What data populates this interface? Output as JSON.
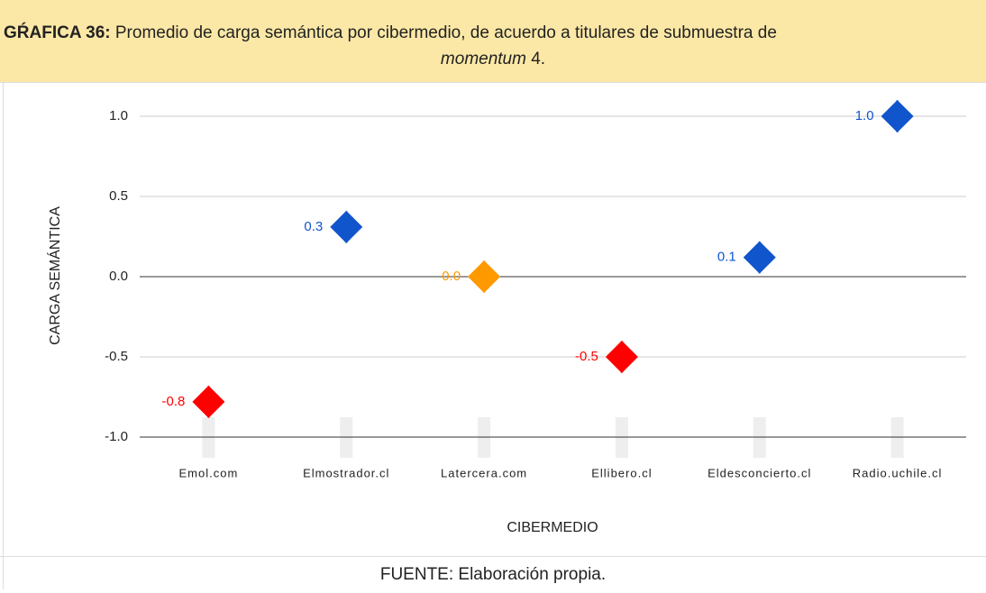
{
  "header": {
    "label": "GŔAFICA 36:",
    "text": "Promedio de carga semántica por cibermedio, de acuerdo a titulares de submuestra de",
    "italic": "momentum",
    "suffix": " 4."
  },
  "chart_data": {
    "type": "scatter",
    "categories": [
      "Emol.com",
      "Elmostrador.cl",
      "Latercera.com",
      "Ellibero.cl",
      "Eldesconcierto.cl",
      "Radio.uchile.cl"
    ],
    "values": [
      -0.78,
      0.31,
      0.0,
      -0.5,
      0.12,
      1.0
    ],
    "value_labels": [
      "-0.8",
      "0.3",
      "0.0",
      "-0.5",
      "0.1",
      "1.0"
    ],
    "colors": [
      "#ff0000",
      "#1155cc",
      "#ff9900",
      "#ff0000",
      "#1155cc",
      "#1155cc"
    ],
    "ylim": [
      -1,
      1
    ],
    "yticks": [
      {
        "value": 1,
        "label": "1.0"
      },
      {
        "value": 0.5,
        "label": "0.5"
      },
      {
        "value": 0,
        "label": "0.0"
      },
      {
        "value": -0.5,
        "label": "-0.5"
      },
      {
        "value": -1,
        "label": "-1.0"
      }
    ],
    "y_label": "CARGA SEMÁNTICA",
    "x_label": "CIBERMEDIO",
    "grid": true
  },
  "footer": {
    "text": "FUENTE: Elaboración propia."
  }
}
